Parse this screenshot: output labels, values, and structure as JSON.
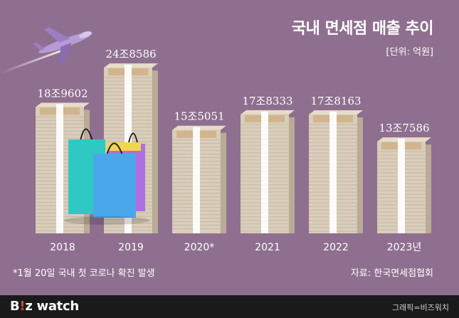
{
  "header": {
    "title": "국내 면세점 매출 추이",
    "unit": "[단위: 억원]"
  },
  "footnote": "*1월 20일 국내 첫 코로나 확진 발생",
  "source": "자료: 한국면세점협회",
  "footer": {
    "logo_b": "B",
    "logo_accent": "!",
    "logo_z": "z",
    "logo_rest": " watch",
    "credit": "그래픽=비즈워치"
  },
  "colors": {
    "background": "#8f6f8f",
    "bill_front": "#d9cdbb",
    "bill_side": "#b9ab96",
    "band": "#ffffff",
    "footer": "#1a1a1a"
  },
  "chart_data": {
    "type": "bar",
    "categories": [
      "2018",
      "2019",
      "2020*",
      "2021",
      "2022",
      "2023년"
    ],
    "values": [
      189602,
      248586,
      155051,
      178333,
      178163,
      137586
    ],
    "value_labels": [
      "18조9602",
      "24조8586",
      "15조5051",
      "17조8333",
      "17조8163",
      "13조7586"
    ],
    "title": "국내 면세점 매출 추이",
    "ylabel": "",
    "xlabel": "",
    "ylim": [
      0,
      270000
    ]
  }
}
